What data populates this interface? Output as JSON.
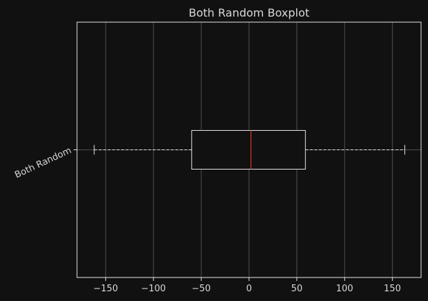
{
  "chart_data": {
    "type": "boxplot",
    "orientation": "horizontal",
    "title": "Both Random Boxplot",
    "xlabel": "",
    "ylabel": "",
    "xlim": [
      -180,
      180
    ],
    "xticks": [
      -150,
      -100,
      -50,
      0,
      50,
      100,
      150
    ],
    "xtick_labels": [
      "−150",
      "−100",
      "−50",
      "0",
      "50",
      "100",
      "150"
    ],
    "grid": true,
    "series": [
      {
        "name": "Both Random",
        "whisker_low": -162,
        "q1": -60,
        "median": 2,
        "q3": 59,
        "whisker_high": 163
      }
    ],
    "colors": {
      "background": "#111111",
      "frame": "#e6e6e6",
      "grid": "#505050",
      "box": "#e6e6e6",
      "median": "#c0392b",
      "text": "#d8d8d8"
    }
  }
}
